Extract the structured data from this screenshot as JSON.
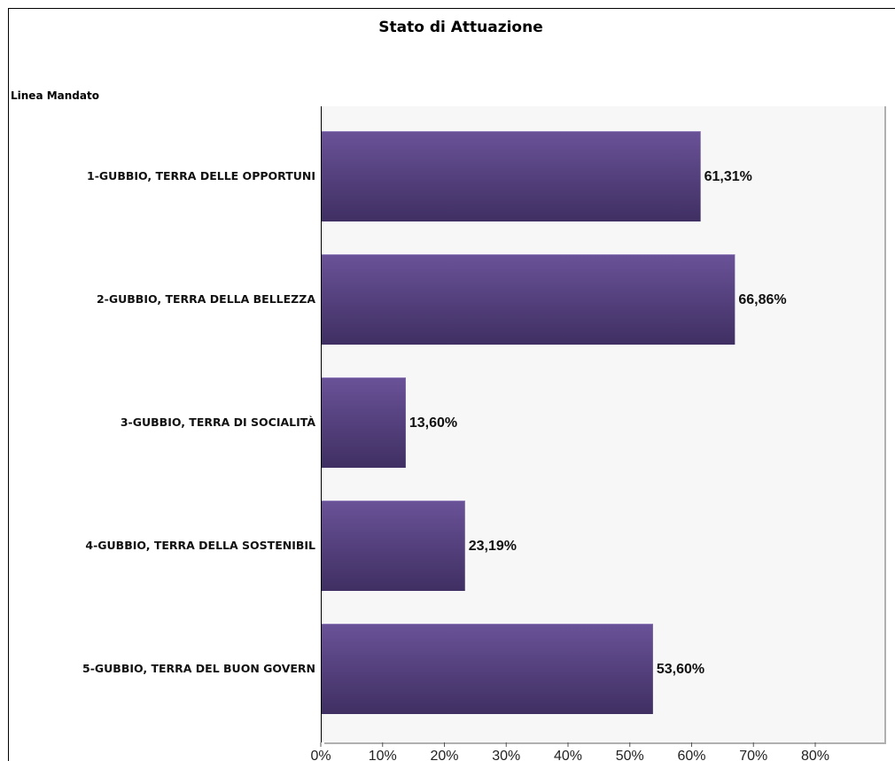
{
  "chart_data": {
    "type": "bar",
    "orientation": "horizontal",
    "title": "Stato di Attuazione",
    "ylabel": "Linea Mandato",
    "xlabel": "",
    "categories": [
      "1-GUBBIO, TERRA DELLE OPPORTUNI",
      "2-GUBBIO, TERRA DELLA BELLEZZA",
      "3-GUBBIO, TERRA DI SOCIALITÀ",
      "4-GUBBIO, TERRA DELLA SOSTENIBIL",
      "5-GUBBIO, TERRA DEL BUON GOVERN"
    ],
    "values": [
      61.31,
      66.86,
      13.6,
      23.19,
      53.6
    ],
    "value_labels": [
      "61,31%",
      "66,86%",
      "13,60%",
      "23,19%",
      "53,60%"
    ],
    "xticks": [
      0,
      10,
      20,
      30,
      40,
      50,
      60,
      70,
      80
    ],
    "xtick_labels": [
      "0%",
      "10%",
      "20%",
      "30%",
      "40%",
      "50%",
      "60%",
      "70%",
      "80%"
    ],
    "xlim": [
      0,
      80
    ],
    "grid": false,
    "colors": {
      "bar_top": "#6a5298",
      "bar_bottom": "#3f2f62",
      "plot_bg": "#f7f7f7",
      "frame": "#000000"
    }
  }
}
